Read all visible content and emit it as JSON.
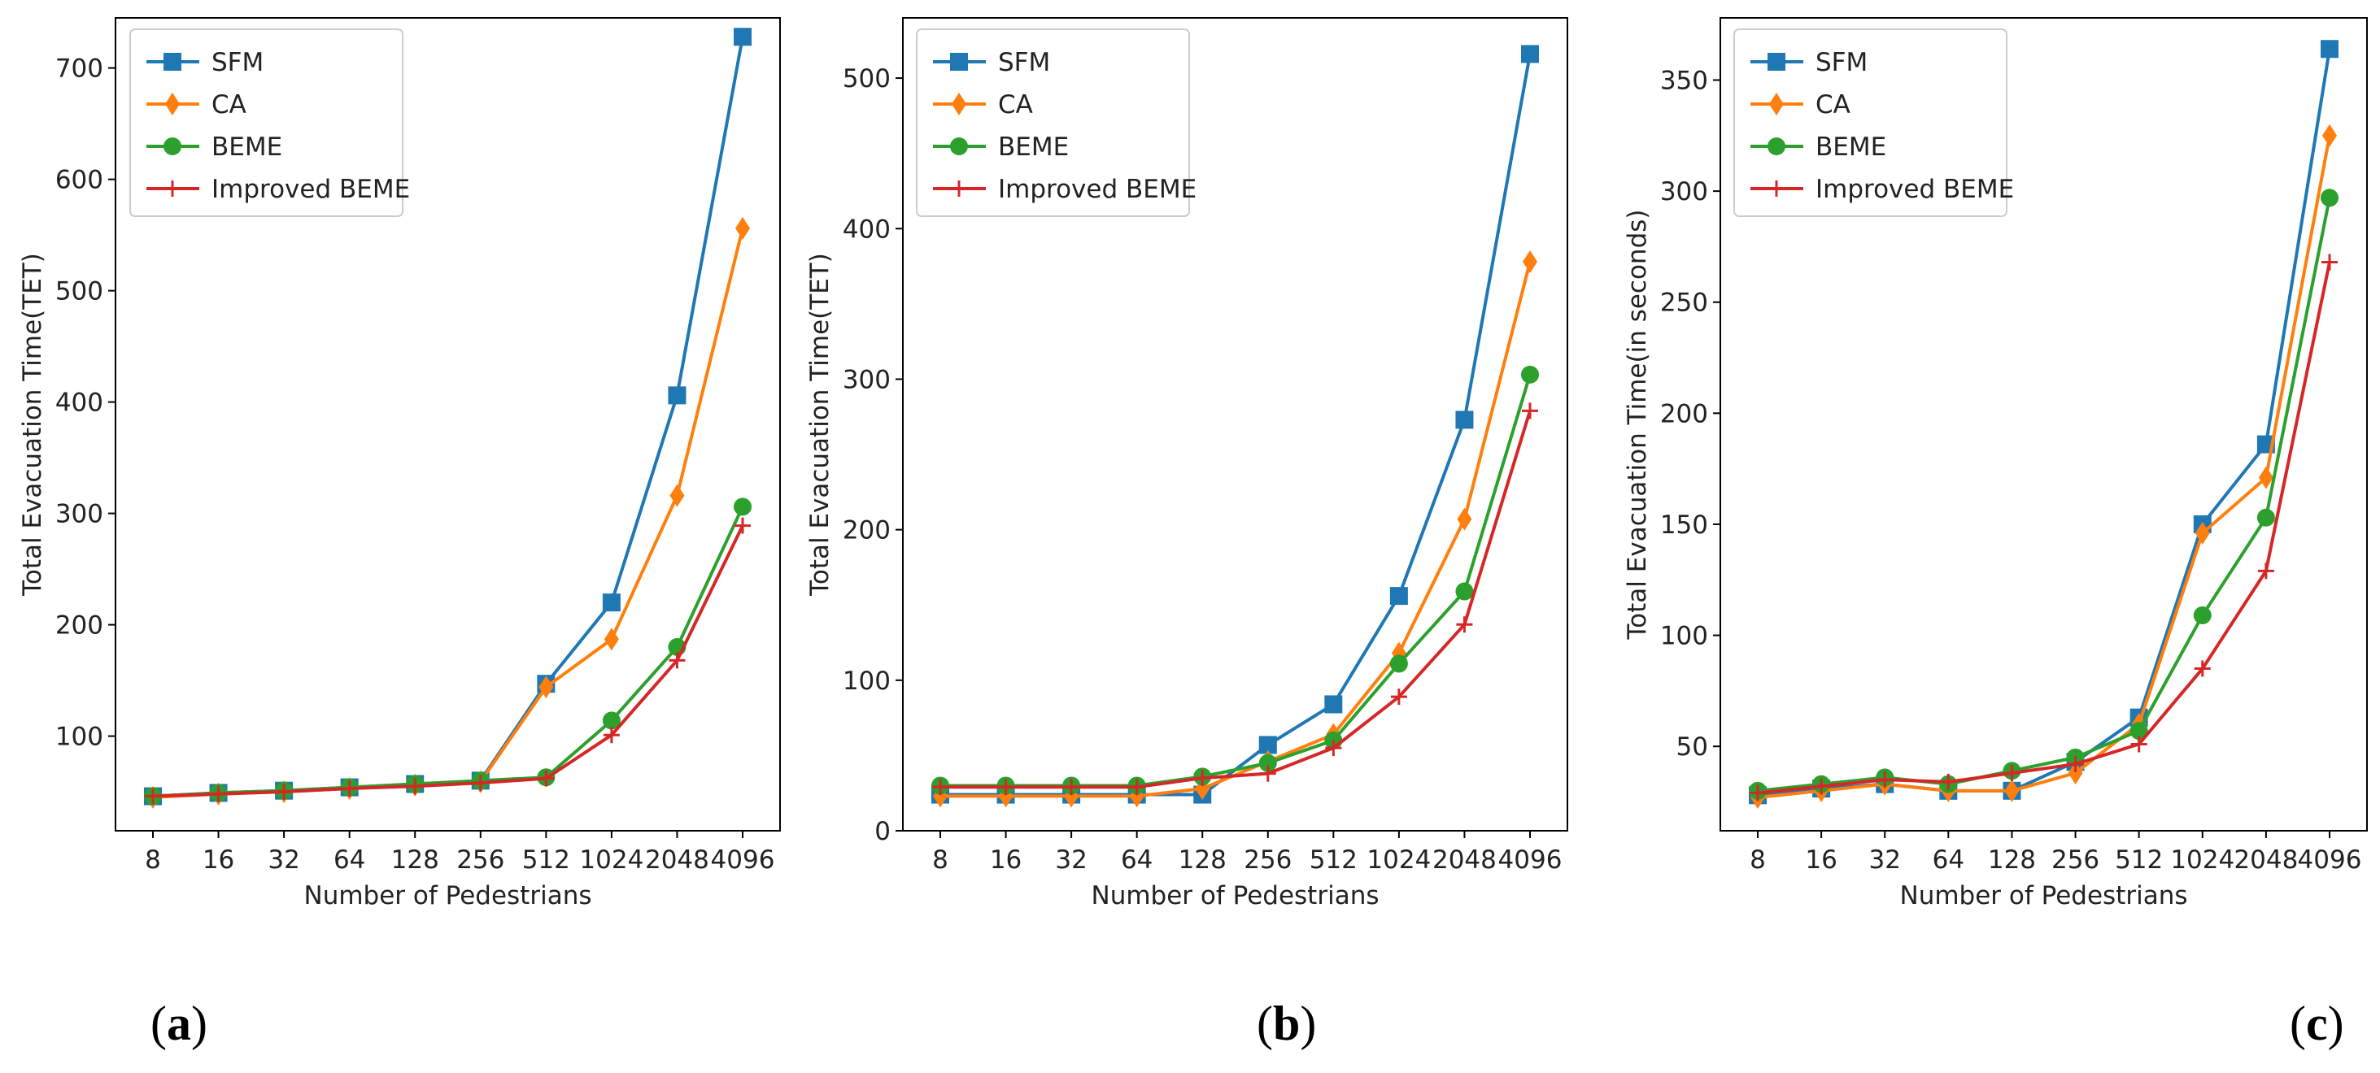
{
  "colors": {
    "SFM": "#1f77b4",
    "CA": "#ff7f0e",
    "BEME": "#2ca02c",
    "Improved BEME": "#d62728"
  },
  "chart_data": [
    {
      "type": "line",
      "panel_label": "a",
      "xlabel": "Number of Pedestrians",
      "ylabel": "Total Evacuation Time(TET)",
      "categories": [
        "8",
        "16",
        "32",
        "64",
        "128",
        "256",
        "512",
        "1024",
        "2048",
        "4096"
      ],
      "ylim": [
        15,
        745
      ],
      "yticks": [
        100,
        200,
        300,
        400,
        500,
        600,
        700
      ],
      "legend": [
        "SFM",
        "CA",
        "BEME",
        "Improved BEME"
      ],
      "legend_position": "top-left",
      "series": [
        {
          "name": "SFM",
          "marker": "square",
          "values": [
            46,
            49,
            51,
            54,
            57,
            60,
            147,
            220,
            406,
            728
          ]
        },
        {
          "name": "CA",
          "marker": "diamond",
          "values": [
            45,
            48,
            50,
            53,
            56,
            59,
            144,
            187,
            316,
            556
          ]
        },
        {
          "name": "BEME",
          "marker": "circle",
          "values": [
            46,
            49,
            51,
            54,
            57,
            60,
            63,
            114,
            180,
            306
          ]
        },
        {
          "name": "Improved BEME",
          "marker": "plus",
          "values": [
            46,
            48,
            50,
            53,
            55,
            58,
            62,
            101,
            168,
            289
          ]
        }
      ]
    },
    {
      "type": "line",
      "panel_label": "b",
      "xlabel": "Number of Pedestrians",
      "ylabel": "Total Evacuation Time(TET)",
      "categories": [
        "8",
        "16",
        "32",
        "64",
        "128",
        "256",
        "512",
        "1024",
        "2048",
        "4096"
      ],
      "ylim": [
        0,
        540
      ],
      "yticks": [
        0,
        100,
        200,
        300,
        400,
        500
      ],
      "legend": [
        "SFM",
        "CA",
        "BEME",
        "Improved BEME"
      ],
      "legend_position": "top-left",
      "series": [
        {
          "name": "SFM",
          "marker": "square",
          "values": [
            24,
            24,
            24,
            24,
            24,
            57,
            84,
            156,
            273,
            516
          ]
        },
        {
          "name": "CA",
          "marker": "diamond",
          "values": [
            23,
            23,
            23,
            23,
            28,
            46,
            64,
            118,
            207,
            378
          ]
        },
        {
          "name": "BEME",
          "marker": "circle",
          "values": [
            30,
            30,
            30,
            30,
            36,
            45,
            60,
            111,
            159,
            303
          ]
        },
        {
          "name": "Improved BEME",
          "marker": "plus",
          "values": [
            29,
            29,
            29,
            29,
            35,
            38,
            55,
            89,
            137,
            279
          ]
        }
      ]
    },
    {
      "type": "line",
      "panel_label": "c",
      "xlabel": "Number of Pedestrians",
      "ylabel": "Total Evacuation Time(in seconds)",
      "categories": [
        "8",
        "16",
        "32",
        "64",
        "128",
        "256",
        "512",
        "1024",
        "2048",
        "4096"
      ],
      "ylim": [
        12,
        378
      ],
      "yticks": [
        50,
        100,
        150,
        200,
        250,
        300,
        350
      ],
      "legend": [
        "SFM",
        "CA",
        "BEME",
        "Improved BEME"
      ],
      "legend_position": "top-left",
      "series": [
        {
          "name": "SFM",
          "marker": "square",
          "values": [
            28,
            31,
            33,
            30,
            30,
            43,
            63,
            150,
            186,
            364
          ]
        },
        {
          "name": "CA",
          "marker": "diamond",
          "values": [
            27,
            30,
            33,
            30,
            30,
            38,
            60,
            146,
            171,
            325
          ]
        },
        {
          "name": "BEME",
          "marker": "circle",
          "values": [
            30,
            33,
            36,
            33,
            39,
            45,
            57,
            109,
            153,
            297
          ]
        },
        {
          "name": "Improved BEME",
          "marker": "plus",
          "values": [
            29,
            32,
            35,
            34,
            38,
            42,
            51,
            85,
            129,
            268
          ]
        }
      ]
    }
  ]
}
